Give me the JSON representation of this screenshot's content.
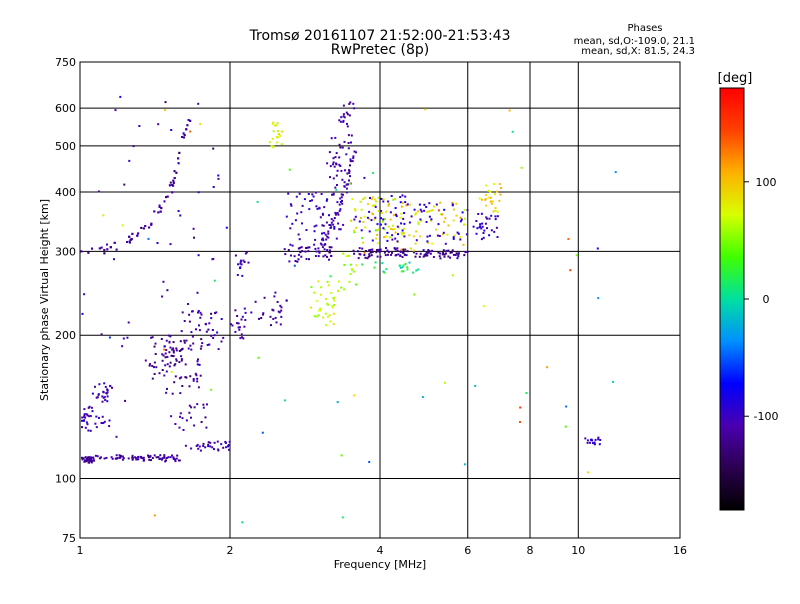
{
  "chart_data": {
    "type": "scatter",
    "title": "Tromsø 20161107 21:52:00-21:53:43",
    "subtitle": "RwPretec (8p)",
    "xlabel": "Frequency [MHz]",
    "ylabel": "Stationary phase Virtual Height [km]",
    "x_scale": "log",
    "y_scale": "log",
    "xlim": [
      1,
      16
    ],
    "ylim": [
      75,
      750
    ],
    "x_ticks": [
      1,
      2,
      4,
      6,
      8,
      10,
      16
    ],
    "y_ticks": [
      75,
      100,
      200,
      300,
      400,
      500,
      600,
      750
    ],
    "grid": true,
    "stats": {
      "heading": "Phases",
      "line1": "mean, sd,O:-109.0, 21.1",
      "line2": "mean, sd,X:  81.5, 24.3"
    },
    "colorbar": {
      "label": "[deg]",
      "range": [
        -180,
        180
      ],
      "ticks": [
        -100,
        0,
        100
      ]
    },
    "clusters": [
      {
        "x": [
          1.0,
          1.06
        ],
        "y": [
          108,
          111
        ],
        "phase": [
          -130,
          -105
        ],
        "n": 40
      },
      {
        "x": [
          1.06,
          1.4
        ],
        "y": [
          109,
          112
        ],
        "phase": [
          -130,
          -100
        ],
        "n": 50
      },
      {
        "x": [
          1.4,
          1.6
        ],
        "y": [
          108,
          112
        ],
        "phase": [
          -140,
          -100
        ],
        "n": 30
      },
      {
        "x": [
          1.6,
          2.0
        ],
        "y": [
          114,
          120
        ],
        "phase": [
          -130,
          -90
        ],
        "n": 30
      },
      {
        "x": [
          1.0,
          1.06
        ],
        "y": [
          125,
          142
        ],
        "phase": [
          -130,
          -90
        ],
        "n": 25
      },
      {
        "x": [
          1.06,
          1.15
        ],
        "y": [
          145,
          160
        ],
        "phase": [
          -125,
          -90
        ],
        "n": 25
      },
      {
        "x": [
          1.05,
          1.15
        ],
        "y": [
          125,
          135
        ],
        "phase": [
          -120,
          -90
        ],
        "n": 10
      },
      {
        "x": [
          1.35,
          1.55
        ],
        "y": [
          160,
          200
        ],
        "phase": [
          -140,
          -100
        ],
        "n": 35
      },
      {
        "x": [
          1.45,
          1.75
        ],
        "y": [
          150,
          195
        ],
        "phase": [
          -140,
          -100
        ],
        "n": 55
      },
      {
        "x": [
          1.6,
          1.95
        ],
        "y": [
          185,
          225
        ],
        "phase": [
          -130,
          -95
        ],
        "n": 40
      },
      {
        "x": [
          1.5,
          1.8
        ],
        "y": [
          125,
          145
        ],
        "phase": [
          -130,
          -95
        ],
        "n": 20
      },
      {
        "x": [
          2.0,
          2.15
        ],
        "y": [
          195,
          230
        ],
        "phase": [
          -130,
          -100
        ],
        "n": 20
      },
      {
        "x": [
          2.05,
          2.2
        ],
        "y": [
          260,
          300
        ],
        "phase": [
          -120,
          -90
        ],
        "n": 15
      },
      {
        "x": [
          2.2,
          2.6
        ],
        "y": [
          210,
          245
        ],
        "phase": [
          -130,
          -100
        ],
        "n": 25
      },
      {
        "x": [
          2.4,
          2.55
        ],
        "y": [
          470,
          560
        ],
        "phase": [
          60,
          90
        ],
        "n": 20
      },
      {
        "x": [
          2.55,
          3.2
        ],
        "y": [
          285,
          310
        ],
        "phase": [
          -130,
          -100
        ],
        "n": 50
      },
      {
        "x": [
          2.6,
          3.4
        ],
        "y": [
          315,
          400
        ],
        "phase": [
          -120,
          -85
        ],
        "n": 60
      },
      {
        "x": [
          3.1,
          3.5
        ],
        "y": [
          400,
          520
        ],
        "phase": [
          -130,
          -100
        ],
        "n": 40
      },
      {
        "x": [
          3.3,
          3.55
        ],
        "y": [
          520,
          620
        ],
        "phase": [
          -130,
          -100
        ],
        "n": 20
      },
      {
        "x": [
          2.9,
          3.3
        ],
        "y": [
          210,
          260
        ],
        "phase": [
          50,
          85
        ],
        "n": 35
      },
      {
        "x": [
          3.3,
          3.6
        ],
        "y": [
          230,
          300
        ],
        "phase": [
          40,
          80
        ],
        "n": 15
      },
      {
        "x": [
          3.5,
          4.5
        ],
        "y": [
          290,
          305
        ],
        "phase": [
          -140,
          -100
        ],
        "n": 60
      },
      {
        "x": [
          3.5,
          4.5
        ],
        "y": [
          310,
          390
        ],
        "phase": [
          40,
          110
        ],
        "n": 60
      },
      {
        "x": [
          3.5,
          4.5
        ],
        "y": [
          310,
          400
        ],
        "phase": [
          -115,
          -80
        ],
        "n": 40
      },
      {
        "x": [
          4.5,
          6.0
        ],
        "y": [
          290,
          302
        ],
        "phase": [
          -140,
          -100
        ],
        "n": 50
      },
      {
        "x": [
          4.2,
          6.0
        ],
        "y": [
          300,
          380
        ],
        "phase": [
          60,
          120
        ],
        "n": 55
      },
      {
        "x": [
          4.2,
          6.0
        ],
        "y": [
          300,
          380
        ],
        "phase": [
          -115,
          -80
        ],
        "n": 45
      },
      {
        "x": [
          3.9,
          4.8
        ],
        "y": [
          270,
          285
        ],
        "phase": [
          -20,
          40
        ],
        "n": 20
      },
      {
        "x": [
          6.1,
          6.9
        ],
        "y": [
          315,
          360
        ],
        "phase": [
          -120,
          -85
        ],
        "n": 30
      },
      {
        "x": [
          6.3,
          7.0
        ],
        "y": [
          360,
          420
        ],
        "phase": [
          60,
          110
        ],
        "n": 25
      },
      {
        "x": [
          10.3,
          11.2
        ],
        "y": [
          118,
          122
        ],
        "phase": [
          -110,
          -85
        ],
        "n": 15
      },
      {
        "x": [
          1.0,
          1.9
        ],
        "y": [
          110,
          640
        ],
        "phase": [
          -140,
          -80
        ],
        "n": 50
      },
      {
        "x": [
          1.0,
          12.0
        ],
        "y": [
          78,
          600
        ],
        "phase": [
          -100,
          150
        ],
        "n": 60
      }
    ],
    "curves": [
      {
        "x": [
          1.0,
          1.1,
          1.2,
          1.3,
          1.4,
          1.5,
          1.55,
          1.6,
          1.65
        ],
        "y": [
          300,
          302,
          310,
          325,
          350,
          390,
          430,
          500,
          560
        ],
        "phase": [
          -140,
          -100
        ],
        "n": 130
      },
      {
        "x": [
          3.0,
          3.15,
          3.3,
          3.45,
          3.55
        ],
        "y": [
          300,
          330,
          370,
          420,
          480
        ],
        "phase": [
          -130,
          -100
        ],
        "n": 50
      }
    ]
  }
}
